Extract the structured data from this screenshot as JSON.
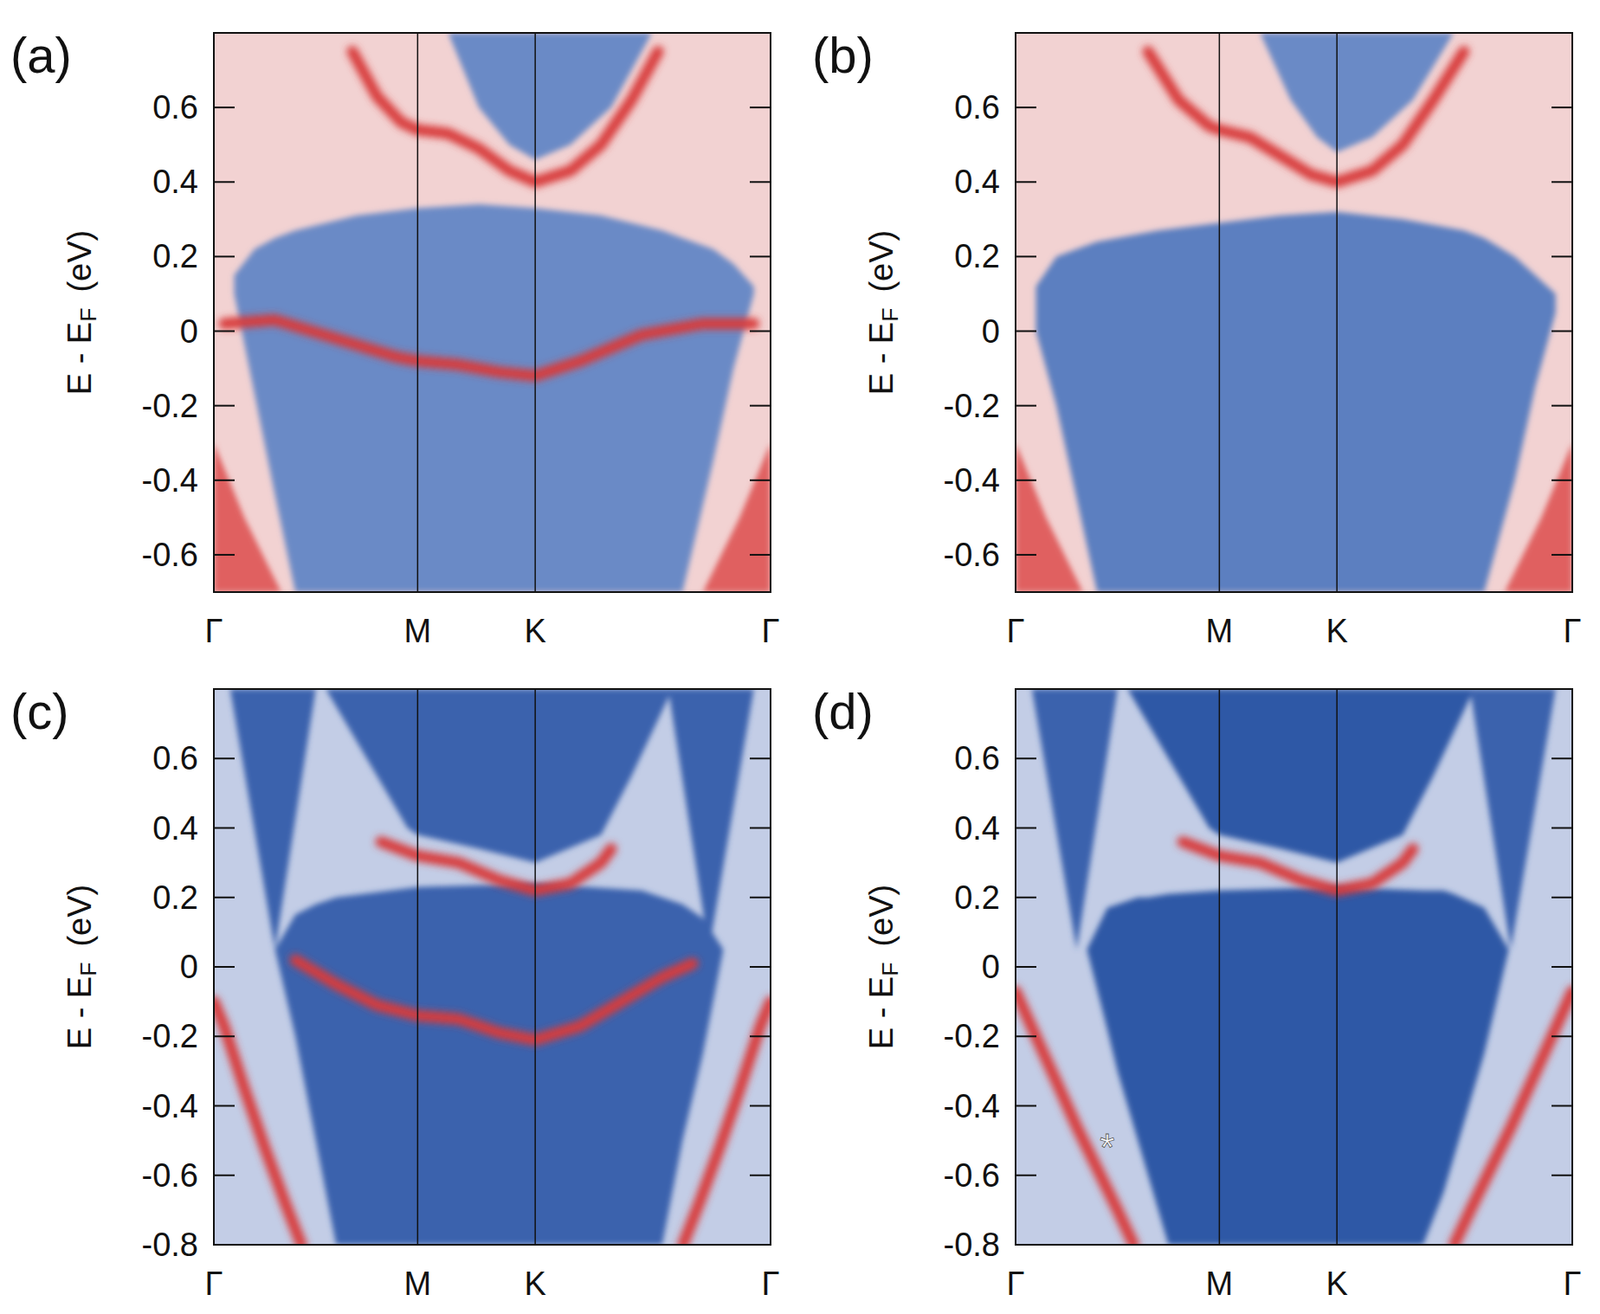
{
  "chart_data": [
    {
      "type": "line",
      "title": "(a)",
      "color": "#f2d2d2",
      "ylabel": {
        "main": "E - E",
        "sub": "F",
        "unit": "(eV)"
      },
      "xlim": [
        0,
        2.732
      ],
      "xticks": [
        {
          "value": 0,
          "label": "Γ"
        },
        {
          "value": 1,
          "label": "M"
        },
        {
          "value": 1.577,
          "label": "K"
        },
        {
          "value": 2.732,
          "label": "Γ"
        }
      ],
      "ylim": [
        -0.7,
        0.8
      ],
      "yticks": [
        -0.6,
        -0.4,
        -0.2,
        0,
        0.2,
        0.4,
        0.6
      ],
      "grid": true,
      "series": [
        {
          "type": "area",
          "color": "#6a8ac6",
          "x": [
            0.1,
            0.2,
            0.3,
            0.4,
            0.7,
            1.0,
            1.3,
            1.577,
            1.9,
            2.2,
            2.3,
            2.45,
            2.55,
            2.65
          ],
          "values": [
            0.15,
            0.22,
            0.25,
            0.27,
            0.31,
            0.33,
            0.34,
            0.33,
            0.31,
            0.27,
            0.25,
            0.22,
            0.18,
            0.12
          ],
          "lower": [
            0.1,
            -0.17,
            -0.44,
            -0.7,
            -0.7,
            -0.7,
            -0.7,
            -0.7,
            -0.7,
            -0.7,
            -0.7,
            -0.35,
            -0.1,
            0.1
          ]
        },
        {
          "type": "area",
          "color": "#6a8ac6",
          "x": [
            1.15,
            1.3,
            1.45,
            1.577,
            1.75,
            1.95,
            2.15
          ],
          "values": [
            0.8,
            0.8,
            0.8,
            0.8,
            0.8,
            0.8,
            0.8
          ],
          "lower": [
            0.8,
            0.6,
            0.5,
            0.46,
            0.5,
            0.6,
            0.8
          ]
        },
        {
          "type": "area",
          "color": "#e06060",
          "x": [
            0,
            0.15,
            0.33
          ],
          "values": [
            -0.3,
            -0.5,
            -0.7
          ],
          "lower": [
            -0.7,
            -0.7,
            -0.7
          ]
        },
        {
          "type": "area",
          "color": "#e06060",
          "x": [
            2.4,
            2.58,
            2.732
          ],
          "values": [
            -0.7,
            -0.5,
            -0.3
          ],
          "lower": [
            -0.7,
            -0.7,
            -0.7
          ]
        },
        {
          "type": "line",
          "color": "#d83a3a",
          "x": [
            0.05,
            0.3,
            0.6,
            0.9,
            1.0,
            1.2,
            1.4,
            1.577,
            1.8,
            2.1,
            2.4,
            2.65
          ],
          "values": [
            0.02,
            0.03,
            -0.02,
            -0.07,
            -0.08,
            -0.09,
            -0.11,
            -0.12,
            -0.08,
            -0.01,
            0.02,
            0.02
          ]
        },
        {
          "type": "line",
          "color": "#d83a3a",
          "x": [
            0.68,
            0.8,
            0.92,
            1.0,
            1.15,
            1.3,
            1.45,
            1.577,
            1.75,
            1.9,
            2.05,
            2.18
          ],
          "values": [
            0.75,
            0.63,
            0.56,
            0.54,
            0.53,
            0.49,
            0.43,
            0.4,
            0.43,
            0.5,
            0.62,
            0.75
          ]
        }
      ]
    },
    {
      "type": "line",
      "title": "(b)",
      "color": "#f2d2d2",
      "ylabel": {
        "main": "E - E",
        "sub": "F",
        "unit": "(eV)"
      },
      "xlim": [
        0,
        2.732
      ],
      "xticks": [
        {
          "value": 0,
          "label": "Γ"
        },
        {
          "value": 1,
          "label": "M"
        },
        {
          "value": 1.577,
          "label": "K"
        },
        {
          "value": 2.732,
          "label": "Γ"
        }
      ],
      "ylim": [
        -0.7,
        0.8
      ],
      "yticks": [
        -0.6,
        -0.4,
        -0.2,
        0,
        0.2,
        0.4,
        0.6
      ],
      "grid": true,
      "series": [
        {
          "type": "area",
          "color": "#5b7fc0",
          "x": [
            0.1,
            0.2,
            0.3,
            0.4,
            0.7,
            1.0,
            1.3,
            1.577,
            1.9,
            2.2,
            2.3,
            2.45,
            2.55,
            2.65
          ],
          "values": [
            0.12,
            0.2,
            0.22,
            0.24,
            0.27,
            0.29,
            0.31,
            0.32,
            0.3,
            0.27,
            0.25,
            0.2,
            0.15,
            0.1
          ],
          "lower": [
            0.0,
            -0.2,
            -0.45,
            -0.7,
            -0.7,
            -0.7,
            -0.7,
            -0.7,
            -0.7,
            -0.7,
            -0.7,
            -0.4,
            -0.15,
            0.05
          ]
        },
        {
          "type": "area",
          "color": "#6a8ac6",
          "x": [
            1.2,
            1.35,
            1.48,
            1.577,
            1.75,
            1.95,
            2.15
          ],
          "values": [
            0.8,
            0.8,
            0.8,
            0.8,
            0.8,
            0.8,
            0.8
          ],
          "lower": [
            0.8,
            0.62,
            0.52,
            0.48,
            0.52,
            0.62,
            0.8
          ]
        },
        {
          "type": "area",
          "color": "#e06060",
          "x": [
            0,
            0.15,
            0.33
          ],
          "values": [
            -0.3,
            -0.5,
            -0.7
          ],
          "lower": [
            -0.7,
            -0.7,
            -0.7
          ]
        },
        {
          "type": "area",
          "color": "#e06060",
          "x": [
            2.4,
            2.58,
            2.732
          ],
          "values": [
            -0.7,
            -0.5,
            -0.3
          ],
          "lower": [
            -0.7,
            -0.7,
            -0.7
          ]
        },
        {
          "type": "line",
          "color": "#d83a3a",
          "x": [
            0.65,
            0.8,
            0.95,
            1.0,
            1.15,
            1.3,
            1.45,
            1.577,
            1.75,
            1.9,
            2.05,
            2.2
          ],
          "values": [
            0.75,
            0.62,
            0.55,
            0.54,
            0.52,
            0.47,
            0.42,
            0.4,
            0.43,
            0.5,
            0.62,
            0.75
          ]
        }
      ]
    },
    {
      "type": "line",
      "title": "(c)",
      "color": "#c3cde6",
      "ylabel": {
        "main": "E - E",
        "sub": "F",
        "unit": "(eV)"
      },
      "xlim": [
        0,
        2.732
      ],
      "xticks": [
        {
          "value": 0,
          "label": "Γ"
        },
        {
          "value": 1,
          "label": "M"
        },
        {
          "value": 1.577,
          "label": "K"
        },
        {
          "value": 2.732,
          "label": "Γ"
        }
      ],
      "ylim": [
        -0.8,
        0.8
      ],
      "yticks": [
        -0.8,
        -0.6,
        -0.4,
        -0.2,
        0,
        0.2,
        0.4,
        0.6
      ],
      "grid": true,
      "series": [
        {
          "type": "area",
          "color": "#3a62ad",
          "x": [
            0.3,
            0.4,
            0.5,
            0.6,
            1.0,
            1.577,
            2.1,
            2.2,
            2.3,
            2.4,
            2.5
          ],
          "values": [
            0.05,
            0.15,
            0.18,
            0.2,
            0.23,
            0.24,
            0.22,
            0.2,
            0.18,
            0.14,
            0.05
          ],
          "lower": [
            0.05,
            -0.2,
            -0.5,
            -0.8,
            -0.8,
            -0.8,
            -0.8,
            -0.8,
            -0.5,
            -0.25,
            0.05
          ]
        },
        {
          "type": "area",
          "color": "#3a62ad",
          "x": [
            0.55,
            0.8,
            0.95,
            1.0,
            1.3,
            1.577,
            1.9,
            2.05,
            2.25
          ],
          "values": [
            0.8,
            0.8,
            0.8,
            0.8,
            0.8,
            0.8,
            0.8,
            0.8,
            0.8
          ],
          "lower": [
            0.8,
            0.55,
            0.4,
            0.38,
            0.34,
            0.3,
            0.38,
            0.55,
            0.8
          ]
        },
        {
          "type": "area",
          "color": "#3a62ad",
          "x": [
            0.08,
            0.3,
            0.5
          ],
          "values": [
            0.8,
            0.8,
            0.8
          ],
          "lower": [
            0.8,
            0.05,
            0.8
          ]
        },
        {
          "type": "area",
          "color": "#3a62ad",
          "x": [
            2.23,
            2.43,
            2.65
          ],
          "values": [
            0.8,
            0.8,
            0.8
          ],
          "lower": [
            0.8,
            0.05,
            0.8
          ]
        },
        {
          "type": "line",
          "color": "#d83a3a",
          "x": [
            0.4,
            0.6,
            0.8,
            1.0,
            1.2,
            1.4,
            1.577,
            1.8,
            2.0,
            2.2,
            2.35
          ],
          "values": [
            0.02,
            -0.05,
            -0.11,
            -0.14,
            -0.15,
            -0.19,
            -0.21,
            -0.17,
            -0.1,
            -0.03,
            0.01
          ]
        },
        {
          "type": "line",
          "color": "#d83a3a",
          "x": [
            0.82,
            1.0,
            1.2,
            1.4,
            1.577,
            1.75,
            1.9,
            1.95
          ],
          "values": [
            0.36,
            0.32,
            0.3,
            0.25,
            0.22,
            0.24,
            0.3,
            0.34
          ]
        },
        {
          "type": "line",
          "color": "#d83a3a",
          "x": [
            0,
            0.05,
            0.15,
            0.25,
            0.35,
            0.43
          ],
          "values": [
            -0.1,
            -0.17,
            -0.35,
            -0.52,
            -0.68,
            -0.8
          ]
        },
        {
          "type": "line",
          "color": "#d83a3a",
          "x": [
            2.302,
            2.382,
            2.482,
            2.582,
            2.682,
            2.732
          ],
          "values": [
            -0.8,
            -0.68,
            -0.52,
            -0.35,
            -0.17,
            -0.1
          ]
        }
      ]
    },
    {
      "type": "line",
      "title": "(d)",
      "color": "#c3cde6",
      "ylabel": {
        "main": "E - E",
        "sub": "F",
        "unit": "(eV)"
      },
      "xlim": [
        0,
        2.732
      ],
      "xticks": [
        {
          "value": 0,
          "label": "Γ"
        },
        {
          "value": 1,
          "label": "M"
        },
        {
          "value": 1.577,
          "label": "K"
        },
        {
          "value": 2.732,
          "label": "Γ"
        }
      ],
      "ylim": [
        -0.8,
        0.8
      ],
      "yticks": [
        -0.8,
        -0.6,
        -0.4,
        -0.2,
        0,
        0.2,
        0.4,
        0.6
      ],
      "grid": true,
      "series": [
        {
          "type": "area",
          "color": "#2f58a6",
          "x": [
            0.35,
            0.45,
            0.5,
            0.6,
            0.65,
            0.75,
            1.0,
            1.577,
            2.0,
            2.1,
            2.15,
            2.3,
            2.42
          ],
          "values": [
            0.05,
            0.17,
            0.18,
            0.2,
            0.2,
            0.21,
            0.22,
            0.23,
            0.22,
            0.22,
            0.21,
            0.17,
            0.05
          ],
          "lower": [
            0.05,
            -0.18,
            -0.3,
            -0.5,
            -0.6,
            -0.8,
            -0.8,
            -0.8,
            -0.8,
            -0.65,
            -0.55,
            -0.25,
            0.05
          ]
        },
        {
          "type": "area",
          "color": "#2f58a6",
          "x": [
            0.55,
            0.8,
            0.95,
            1.0,
            1.3,
            1.577,
            1.9,
            2.05,
            2.25
          ],
          "values": [
            0.8,
            0.8,
            0.8,
            0.8,
            0.8,
            0.8,
            0.8,
            0.8,
            0.8
          ],
          "lower": [
            0.8,
            0.55,
            0.4,
            0.38,
            0.34,
            0.3,
            0.38,
            0.55,
            0.8
          ]
        },
        {
          "type": "area",
          "color": "#3a62ad",
          "x": [
            0.08,
            0.3,
            0.5
          ],
          "values": [
            0.8,
            0.8,
            0.8
          ],
          "lower": [
            0.8,
            0.05,
            0.8
          ]
        },
        {
          "type": "area",
          "color": "#3a62ad",
          "x": [
            2.23,
            2.43,
            2.65
          ],
          "values": [
            0.8,
            0.8,
            0.8
          ],
          "lower": [
            0.8,
            0.05,
            0.8
          ]
        },
        {
          "type": "line",
          "color": "#d83a3a",
          "x": [
            0.82,
            1.0,
            1.2,
            1.4,
            1.577,
            1.75,
            1.9,
            1.95
          ],
          "values": [
            0.36,
            0.32,
            0.3,
            0.25,
            0.22,
            0.24,
            0.3,
            0.34
          ]
        },
        {
          "type": "line",
          "color": "#d83a3a",
          "x": [
            0,
            0.1,
            0.2,
            0.3,
            0.4,
            0.5,
            0.58
          ],
          "values": [
            -0.07,
            -0.2,
            -0.33,
            -0.46,
            -0.58,
            -0.7,
            -0.8
          ]
        },
        {
          "type": "line",
          "color": "#d83a3a",
          "x": [
            2.152,
            2.232,
            2.332,
            2.432,
            2.532,
            2.632,
            2.732
          ],
          "values": [
            -0.8,
            -0.7,
            -0.58,
            -0.46,
            -0.33,
            -0.2,
            -0.07
          ]
        }
      ],
      "annotations": [
        {
          "text": "*",
          "x": 0.45,
          "y": -0.52
        }
      ]
    }
  ]
}
